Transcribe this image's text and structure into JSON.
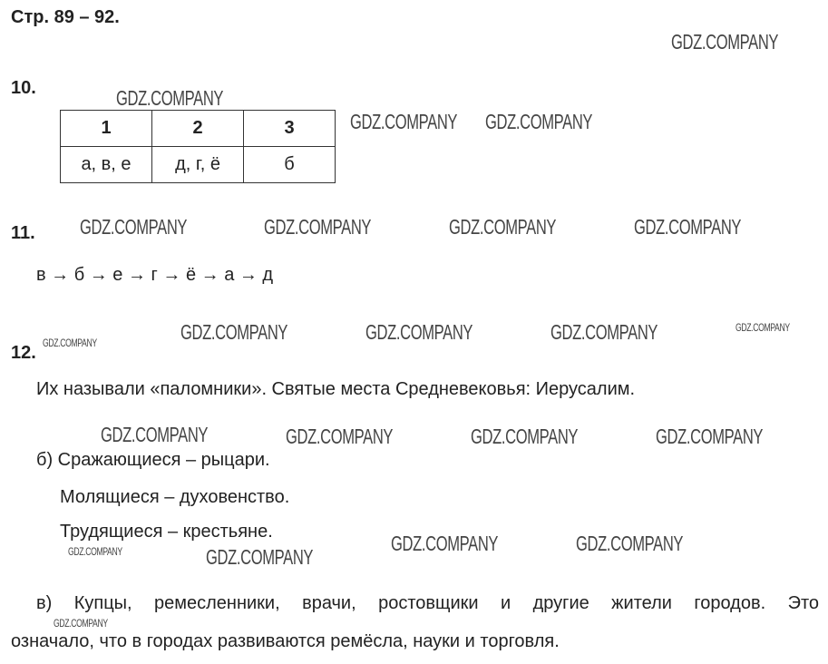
{
  "title": "Стр. 89 – 92.",
  "watermark": "GDZ.COMPANY",
  "task10": {
    "number": "10.",
    "table": {
      "headers": [
        "1",
        "2",
        "3"
      ],
      "row": [
        "а, в, е",
        "д, г, ё",
        "б"
      ]
    }
  },
  "task11": {
    "number": "11.",
    "sequence": "в → б → е → г → ё → а → д"
  },
  "task12": {
    "number": "12.",
    "a": "Их называли «паломники». Святые места Средневековья: Иерусалим.",
    "b": [
      "б) Сражающиеся – рыцари.",
      "Молящиеся – духовенство.",
      "Трудящиеся – крестьяне."
    ],
    "c_line1": "в) Купцы, ремесленники, врачи, ростовщики и другие жители городов. Это",
    "c_line2": "означало, что в городах развиваются ремёсла, науки и торговля."
  }
}
